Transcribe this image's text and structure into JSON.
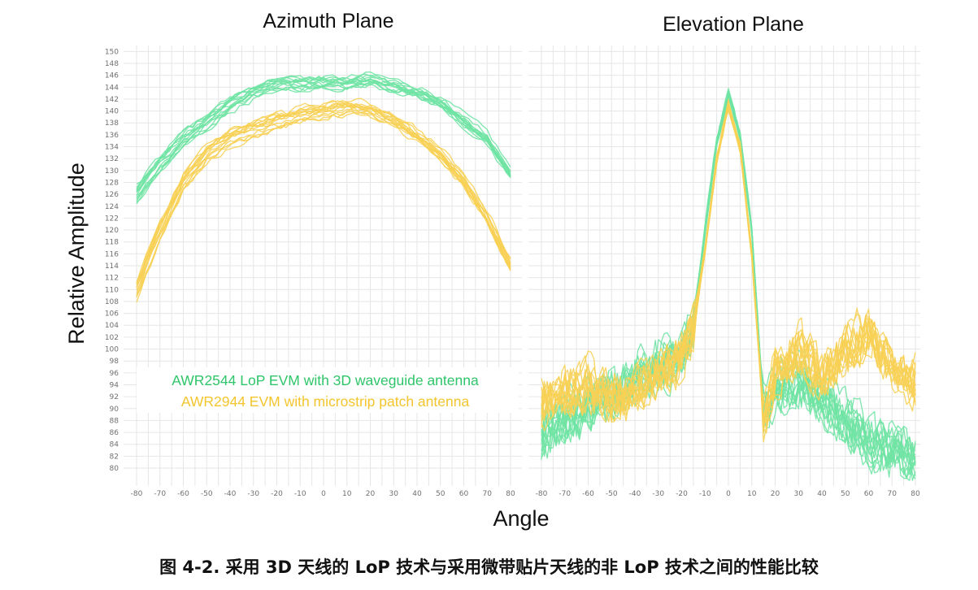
{
  "chart_data": {
    "type": "line",
    "ylabel": "Relative Amplitude",
    "xlabel": "Angle",
    "y_ticks": [
      80,
      82,
      84,
      86,
      88,
      90,
      92,
      94,
      96,
      98,
      100,
      102,
      104,
      106,
      108,
      110,
      112,
      114,
      116,
      118,
      120,
      122,
      124,
      126,
      128,
      130,
      132,
      134,
      136,
      138,
      140,
      142,
      144,
      146,
      148,
      150
    ],
    "ylim": [
      77,
      151
    ],
    "x_ticks": [
      -80,
      -70,
      -60,
      -50,
      -40,
      -30,
      -20,
      -10,
      0,
      10,
      20,
      30,
      40,
      50,
      60,
      70,
      80
    ],
    "legend": {
      "green_label": "AWR2544 LoP EVM with 3D waveguide antenna",
      "yellow_label": "AWR2944 EVM with microstrip patch antenna"
    },
    "colors": {
      "green": "#6fe3a3",
      "yellow": "#f7d054"
    },
    "panels": [
      {
        "title": "Azimuth Plane",
        "xlim": [
          -80,
          80
        ],
        "series": [
          {
            "name": "AWR2544 LoP EVM with 3D waveguide antenna",
            "x": [
              -80,
              -70,
              -60,
              -50,
              -40,
              -30,
              -20,
              -10,
              0,
              10,
              20,
              30,
              40,
              50,
              60,
              70,
              80
            ],
            "values": [
              126,
              131,
              135,
              138,
              141,
              143,
              144.5,
              144.5,
              144.5,
              144.5,
              145,
              144,
              143,
              141,
              138,
              135,
              129
            ]
          },
          {
            "name": "AWR2944 EVM with microstrip patch antenna",
            "x": [
              -80,
              -70,
              -60,
              -50,
              -40,
              -30,
              -20,
              -10,
              0,
              10,
              20,
              30,
              40,
              50,
              60,
              70,
              80
            ],
            "values": [
              110,
              120,
              128,
              133,
              135.5,
              137,
              138.3,
              139.3,
              140,
              140.6,
              140,
              138.3,
              135.8,
              132.5,
              128,
              122,
              114
            ]
          }
        ]
      },
      {
        "title": "Elevation Plane",
        "xlim": [
          -80,
          80
        ],
        "series": [
          {
            "name": "AWR2544 LoP EVM with 3D waveguide antenna",
            "x": [
              -80,
              -70,
              -60,
              -50,
              -40,
              -30,
              -20,
              -15,
              -10,
              -5,
              0,
              5,
              10,
              15,
              20,
              30,
              40,
              50,
              60,
              70,
              80
            ],
            "values": [
              86,
              88,
              91,
              92,
              95,
              97,
              99,
              104,
              120,
              135,
              143,
              136,
              120,
              90,
              93,
              95,
              92,
              88,
              85,
              83,
              82
            ]
          },
          {
            "name": "AWR2944 EVM with microstrip patch antenna",
            "x": [
              -80,
              -70,
              -60,
              -50,
              -40,
              -30,
              -20,
              -15,
              -10,
              -5,
              0,
              5,
              10,
              15,
              20,
              30,
              40,
              50,
              60,
              70,
              80
            ],
            "values": [
              91,
              93,
              94,
              92,
              93,
              96,
              99,
              104,
              117,
              132,
              141,
              134,
              116,
              89,
              96,
              100,
              96,
              100,
              103,
              97,
              95
            ]
          }
        ]
      }
    ]
  },
  "caption": "图 4-2. 采用 3D 天线的 LoP 技术与采用微带贴片天线的非 LoP 技术之间的性能比较"
}
